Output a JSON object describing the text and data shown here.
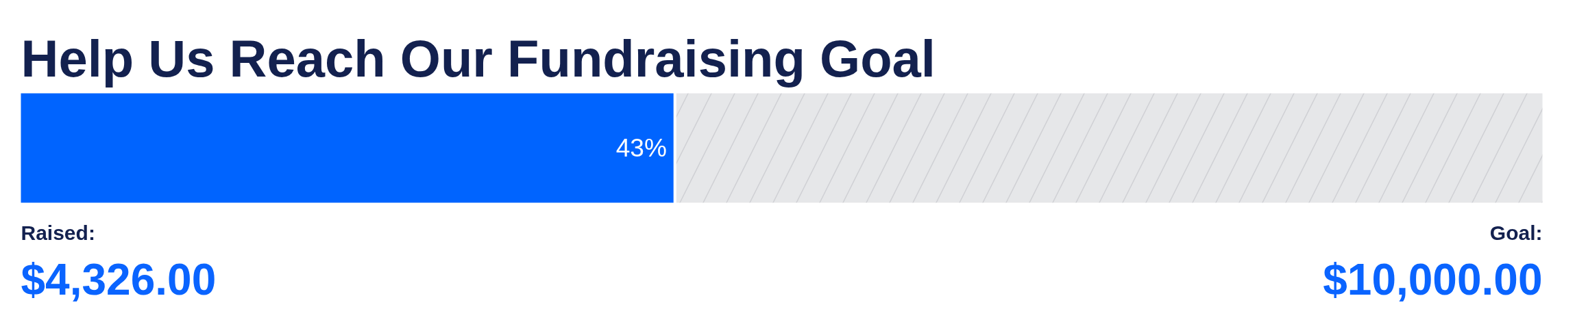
{
  "chart_data": {
    "type": "bar",
    "orientation": "horizontal",
    "stacked": true,
    "title": "Help Us Reach Our Fundraising Goal",
    "categories": [
      null
    ],
    "series": [
      {
        "color": "#0064ff",
        "values": [
          43
        ],
        "value_labels": [
          "43%"
        ]
      },
      {
        "color": "#e6e7e9",
        "values": [
          57
        ]
      }
    ],
    "xlim": [
      0,
      100
    ],
    "annotations": [
      "Raised:",
      "$4,326.00",
      "Goal:",
      "$10,000.00"
    ],
    "tick_labels": false
  }
}
